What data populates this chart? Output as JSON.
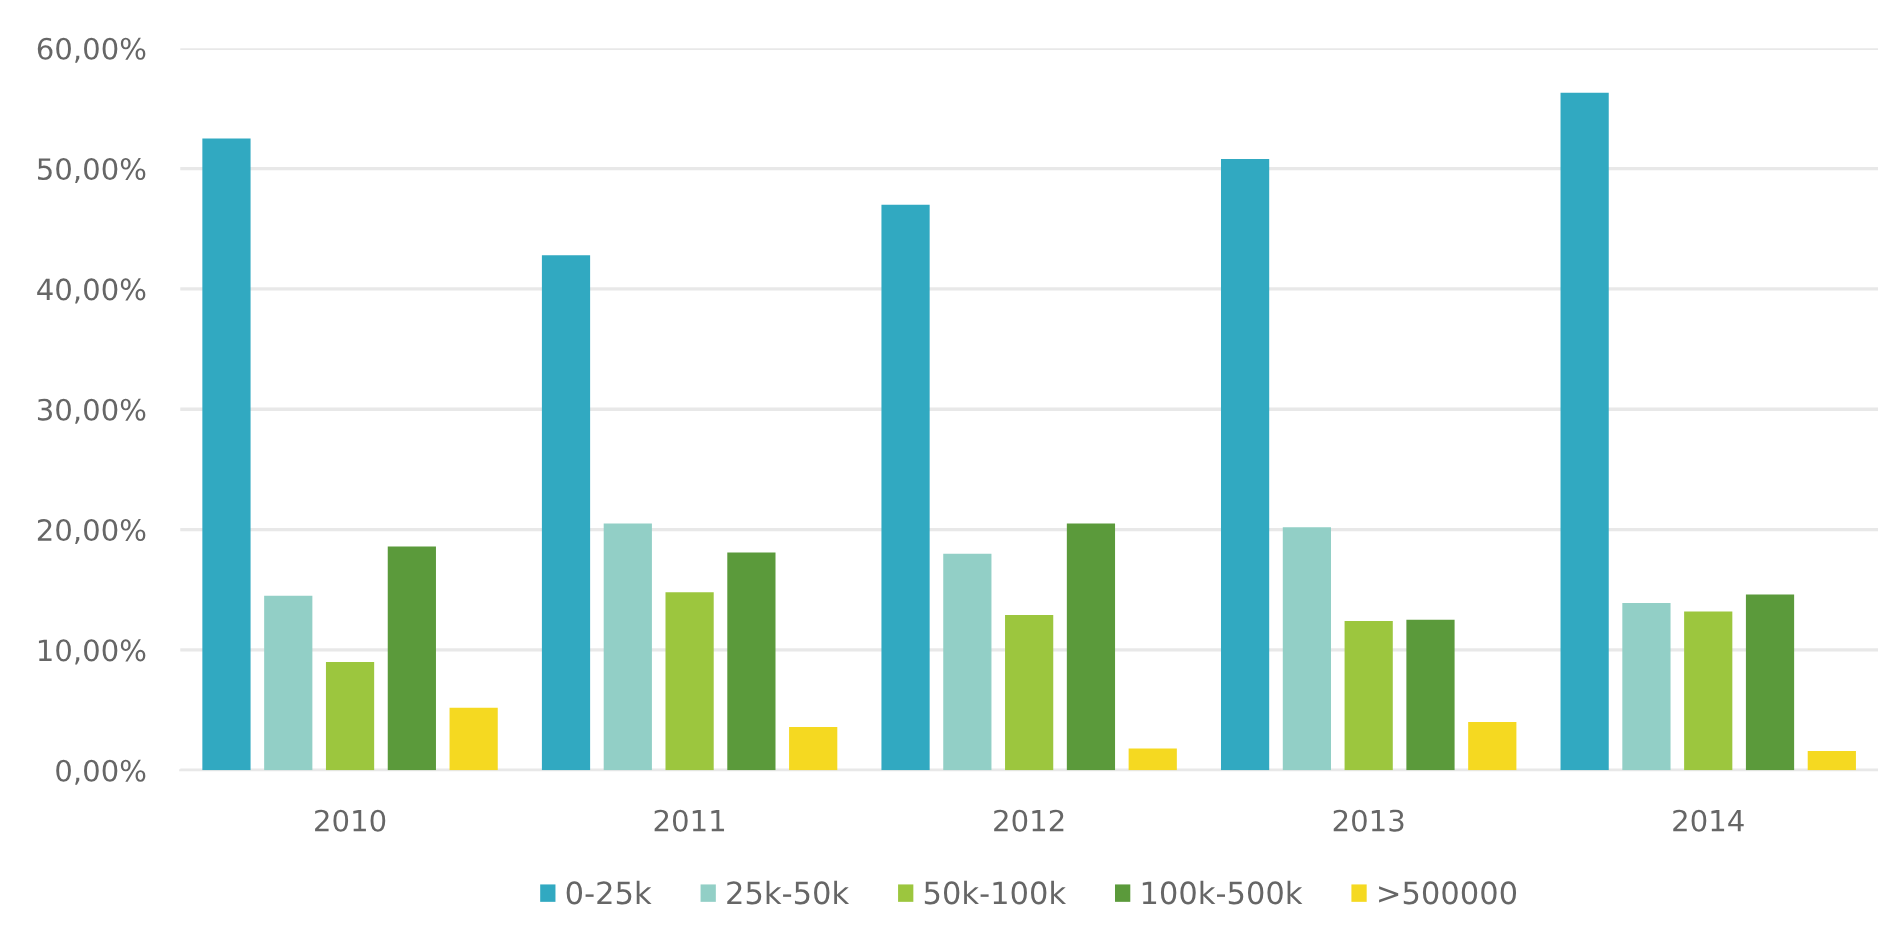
{
  "chart_data": {
    "type": "bar",
    "categories": [
      "2010",
      "2011",
      "2012",
      "2013",
      "2014"
    ],
    "series": [
      {
        "name": "0-25k",
        "color": "#31a9c1",
        "values": [
          52.5,
          42.8,
          47.0,
          50.8,
          56.3
        ]
      },
      {
        "name": "25k-50k",
        "color": "#92cfc6",
        "values": [
          14.5,
          20.5,
          18.0,
          20.2,
          13.9
        ]
      },
      {
        "name": "50k-100k",
        "color": "#9cc63e",
        "values": [
          9.0,
          14.8,
          12.9,
          12.4,
          13.2
        ]
      },
      {
        "name": "100k-500k",
        "color": "#5b9a3b",
        "values": [
          18.6,
          18.1,
          20.5,
          12.5,
          14.6
        ]
      },
      {
        "name": ">500000",
        "color": "#f5d921",
        "values": [
          5.2,
          3.6,
          1.8,
          4.0,
          1.6
        ]
      }
    ],
    "ylim": [
      0,
      60
    ],
    "yticks": [
      {
        "value": 0,
        "label": "0,00%"
      },
      {
        "value": 10,
        "label": "10,00%"
      },
      {
        "value": 20,
        "label": "20,00%"
      },
      {
        "value": 30,
        "label": "30,00%"
      },
      {
        "value": 40,
        "label": "40,00%"
      },
      {
        "value": 50,
        "label": "50,00%"
      },
      {
        "value": 60,
        "label": "60,00%"
      }
    ],
    "grid": "y",
    "legend": "bottom"
  }
}
